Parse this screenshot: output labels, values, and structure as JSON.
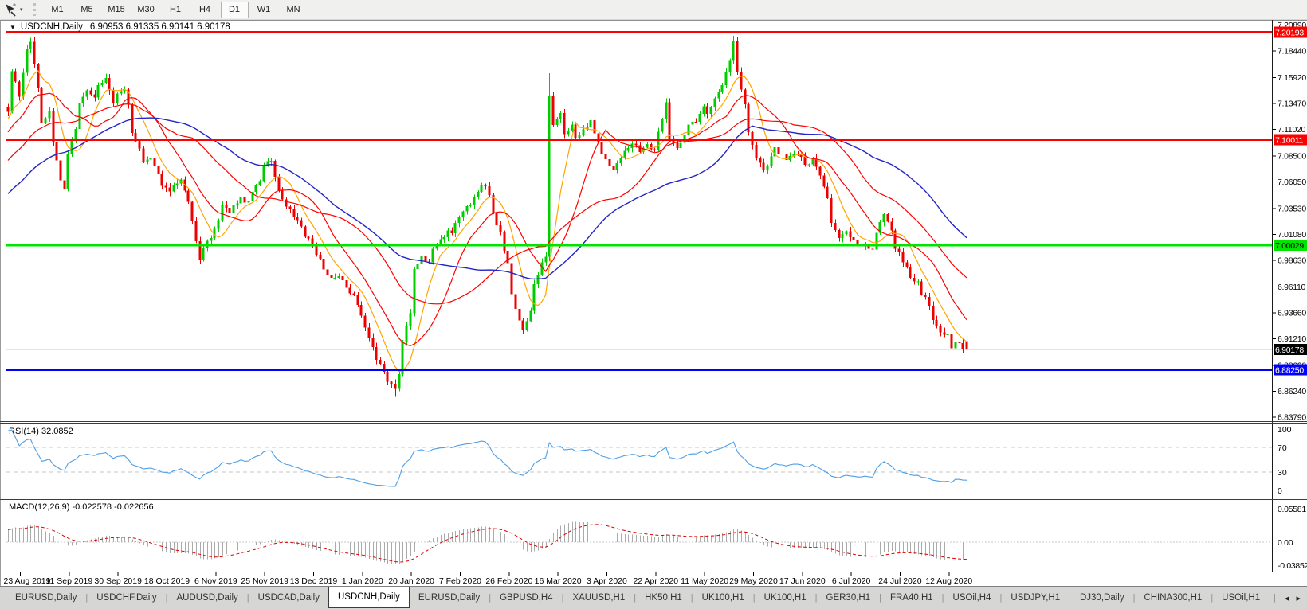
{
  "toolbar": {
    "timeframes": [
      "M1",
      "M5",
      "M15",
      "M30",
      "H1",
      "H4",
      "D1",
      "W1",
      "MN"
    ],
    "active_timeframe": "D1"
  },
  "chart": {
    "symbol_title": "USDCNH,Daily",
    "ohlc_text": "6.90953 6.91335 6.90141 6.90178",
    "menu_caret": "▼",
    "price_axis_labels": [
      "7.20890",
      "7.18440",
      "7.15920",
      "7.13470",
      "7.11020",
      "7.08500",
      "7.06050",
      "7.03530",
      "7.01080",
      "6.98630",
      "6.96110",
      "6.93660",
      "6.91210",
      "6.88690",
      "6.86240",
      "6.83790"
    ],
    "date_axis_labels": [
      "23 Aug 2019",
      "11 Sep 2019",
      "30 Sep 2019",
      "18 Oct 2019",
      "6 Nov 2019",
      "25 Nov 2019",
      "13 Dec 2019",
      "1 Jan 2020",
      "20 Jan 2020",
      "7 Feb 2020",
      "26 Feb 2020",
      "16 Mar 2020",
      "3 Apr 2020",
      "22 Apr 2020",
      "11 May 2020",
      "29 May 2020",
      "17 Jun 2020",
      "6 Jul 2020",
      "24 Jul 2020",
      "12 Aug 2020"
    ],
    "badges": [
      {
        "label": "7.20193",
        "price": 7.20193,
        "bg": "#FF0000",
        "fg": "#FFFFFF"
      },
      {
        "label": "7.10011",
        "price": 7.10011,
        "bg": "#FF0000",
        "fg": "#FFFFFF"
      },
      {
        "label": "7.00029",
        "price": 7.00029,
        "bg": "#00E400",
        "fg": "#000000"
      },
      {
        "label": "6.88250",
        "price": 6.8825,
        "bg": "#0000FF",
        "fg": "#FFFFFF"
      }
    ],
    "current_price": {
      "label": "6.90178",
      "price": 6.90178,
      "line_color": "#C8C8C8",
      "bg": "#000000",
      "fg": "#FFFFFF"
    }
  },
  "chart_data": {
    "type": "candlestick",
    "symbol": "USDCNH",
    "timeframe": "Daily",
    "last_ohlc": {
      "open": 6.90953,
      "high": 6.91335,
      "low": 6.90141,
      "close": 6.90178
    },
    "y_range": [
      6.8379,
      7.2089
    ],
    "num_candles": 256,
    "close_path_anchors": [
      [
        0,
        7.127
      ],
      [
        1,
        7.164
      ],
      [
        3,
        7.142
      ],
      [
        5,
        7.187
      ],
      [
        6,
        7.191
      ],
      [
        8,
        7.149
      ],
      [
        9,
        7.119
      ],
      [
        11,
        7.127
      ],
      [
        12,
        7.1
      ],
      [
        14,
        7.063
      ],
      [
        15,
        7.055
      ],
      [
        16,
        7.089
      ],
      [
        18,
        7.112
      ],
      [
        19,
        7.134
      ],
      [
        21,
        7.149
      ],
      [
        23,
        7.138
      ],
      [
        24,
        7.153
      ],
      [
        26,
        7.157
      ],
      [
        28,
        7.134
      ],
      [
        29,
        7.142
      ],
      [
        31,
        7.148
      ],
      [
        32,
        7.131
      ],
      [
        33,
        7.108
      ],
      [
        35,
        7.093
      ],
      [
        36,
        7.082
      ],
      [
        38,
        7.085
      ],
      [
        40,
        7.07
      ],
      [
        41,
        7.059
      ],
      [
        43,
        7.052
      ],
      [
        44,
        7.055
      ],
      [
        46,
        7.063
      ],
      [
        48,
        7.04
      ],
      [
        50,
        7.006
      ],
      [
        51,
        6.988
      ],
      [
        52,
        6.999
      ],
      [
        54,
        7.006
      ],
      [
        56,
        7.025
      ],
      [
        57,
        7.036
      ],
      [
        59,
        7.03
      ],
      [
        60,
        7.04
      ],
      [
        62,
        7.045
      ],
      [
        64,
        7.04
      ],
      [
        65,
        7.052
      ],
      [
        67,
        7.059
      ],
      [
        68,
        7.074
      ],
      [
        70,
        7.082
      ],
      [
        71,
        7.063
      ],
      [
        73,
        7.044
      ],
      [
        75,
        7.035
      ],
      [
        76,
        7.029
      ],
      [
        78,
        7.018
      ],
      [
        79,
        7.01
      ],
      [
        81,
        6.999
      ],
      [
        83,
        6.988
      ],
      [
        84,
        6.976
      ],
      [
        86,
        6.969
      ],
      [
        88,
        6.973
      ],
      [
        89,
        6.965
      ],
      [
        91,
        6.957
      ],
      [
        93,
        6.946
      ],
      [
        94,
        6.931
      ],
      [
        96,
        6.912
      ],
      [
        98,
        6.893
      ],
      [
        100,
        6.882
      ],
      [
        101,
        6.871
      ],
      [
        103,
        6.865
      ],
      [
        104,
        6.878
      ],
      [
        105,
        6.908
      ],
      [
        107,
        6.938
      ],
      [
        108,
        6.976
      ],
      [
        110,
        6.991
      ],
      [
        112,
        6.984
      ],
      [
        113,
        6.995
      ],
      [
        115,
        7.006
      ],
      [
        117,
        7.014
      ],
      [
        118,
        7.01
      ],
      [
        119,
        7.021
      ],
      [
        121,
        7.033
      ],
      [
        123,
        7.04
      ],
      [
        125,
        7.052
      ],
      [
        126,
        7.059
      ],
      [
        128,
        7.048
      ],
      [
        129,
        7.029
      ],
      [
        131,
        7.01
      ],
      [
        133,
        6.984
      ],
      [
        134,
        6.954
      ],
      [
        136,
        6.931
      ],
      [
        137,
        6.92
      ],
      [
        139,
        6.939
      ],
      [
        140,
        6.961
      ],
      [
        142,
        6.984
      ],
      [
        143,
        6.99
      ],
      [
        144,
        7.14
      ],
      [
        145,
        7.112
      ],
      [
        147,
        7.123
      ],
      [
        148,
        7.104
      ],
      [
        150,
        7.116
      ],
      [
        151,
        7.101
      ],
      [
        153,
        7.108
      ],
      [
        155,
        7.119
      ],
      [
        156,
        7.104
      ],
      [
        158,
        7.089
      ],
      [
        160,
        7.078
      ],
      [
        161,
        7.07
      ],
      [
        163,
        7.082
      ],
      [
        165,
        7.093
      ],
      [
        166,
        7.097
      ],
      [
        168,
        7.089
      ],
      [
        170,
        7.097
      ],
      [
        172,
        7.089
      ],
      [
        173,
        7.108
      ],
      [
        175,
        7.134
      ],
      [
        176,
        7.1
      ],
      [
        178,
        7.093
      ],
      [
        180,
        7.104
      ],
      [
        181,
        7.112
      ],
      [
        183,
        7.119
      ],
      [
        185,
        7.131
      ],
      [
        186,
        7.127
      ],
      [
        188,
        7.138
      ],
      [
        190,
        7.149
      ],
      [
        192,
        7.176
      ],
      [
        193,
        7.195
      ],
      [
        194,
        7.164
      ],
      [
        196,
        7.134
      ],
      [
        197,
        7.108
      ],
      [
        199,
        7.085
      ],
      [
        201,
        7.074
      ],
      [
        203,
        7.082
      ],
      [
        204,
        7.093
      ],
      [
        206,
        7.085
      ],
      [
        208,
        7.082
      ],
      [
        209,
        7.089
      ],
      [
        211,
        7.082
      ],
      [
        213,
        7.074
      ],
      [
        214,
        7.082
      ],
      [
        216,
        7.066
      ],
      [
        218,
        7.044
      ],
      [
        219,
        7.021
      ],
      [
        221,
        7.006
      ],
      [
        223,
        7.014
      ],
      [
        225,
        7.006
      ],
      [
        226,
        6.999
      ],
      [
        228,
        7.003
      ],
      [
        230,
        6.995
      ],
      [
        231,
        7.01
      ],
      [
        233,
        7.029
      ],
      [
        235,
        7.014
      ],
      [
        236,
        6.999
      ],
      [
        238,
        6.984
      ],
      [
        240,
        6.972
      ],
      [
        242,
        6.965
      ],
      [
        243,
        6.954
      ],
      [
        245,
        6.943
      ],
      [
        246,
        6.931
      ],
      [
        248,
        6.92
      ],
      [
        250,
        6.916
      ],
      [
        251,
        6.905
      ],
      [
        253,
        6.908
      ],
      [
        254,
        6.901
      ],
      [
        255,
        6.90178
      ]
    ],
    "wick_highs": [
      [
        144,
        7.163
      ],
      [
        193,
        7.1985
      ]
    ],
    "wick_lows": [
      [
        103,
        6.857
      ]
    ],
    "horizontal_lines": [
      {
        "price": 7.20193,
        "color": "#FF0000",
        "width": 3
      },
      {
        "price": 7.10011,
        "color": "#FF0000",
        "width": 3
      },
      {
        "price": 7.00029,
        "color": "#00E400",
        "width": 3
      },
      {
        "price": 6.8825,
        "color": "#0000FF",
        "width": 3
      }
    ],
    "moving_averages": [
      {
        "period": 8,
        "color": "#FFA500",
        "width": 1.2
      },
      {
        "period": 16,
        "color": "#FF0000",
        "width": 1.2
      },
      {
        "period": 34,
        "color": "#FF0000",
        "width": 1.2
      },
      {
        "period": 55,
        "color": "#2424C8",
        "width": 1.4
      }
    ],
    "colors": {
      "bull": "#00CC00",
      "bear": "#EE0000"
    }
  },
  "rsi_panel": {
    "label": "RSI(14) 32.0852",
    "period": 14,
    "value": 32.0852,
    "axis_labels": [
      "100",
      "70",
      "30",
      "0"
    ],
    "axis_values": [
      100,
      70,
      30,
      0
    ],
    "level_lines": [
      70,
      30
    ],
    "line_color": "#4F9FE5"
  },
  "macd_panel": {
    "label": "MACD(12,26,9) -0.022578 -0.022656",
    "fast": 12,
    "slow": 26,
    "signal": 9,
    "macd_value": -0.022578,
    "signal_value": -0.022656,
    "axis_labels": [
      "0.05581",
      "0.00",
      "-0.038524"
    ],
    "axis_values": [
      0.05581,
      0,
      -0.038524
    ],
    "histogram_color": "#ABABAB",
    "signal_color": "#E00000"
  },
  "tabs": {
    "items": [
      "EURUSD,Daily",
      "USDCHF,Daily",
      "AUDUSD,Daily",
      "USDCAD,Daily",
      "USDCNH,Daily",
      "EURUSD,Daily",
      "GBPUSD,H4",
      "XAUUSD,H1",
      "HK50,H1",
      "UK100,H1",
      "UK100,H1",
      "GER30,H1",
      "FRA40,H1",
      "USOil,H4",
      "USDJPY,H1",
      "DJ30,Daily",
      "CHINA300,H1",
      "USOil,H1"
    ],
    "active_index": 4,
    "scroll_left_icon": "◂",
    "scroll_right_icon": "▸"
  }
}
